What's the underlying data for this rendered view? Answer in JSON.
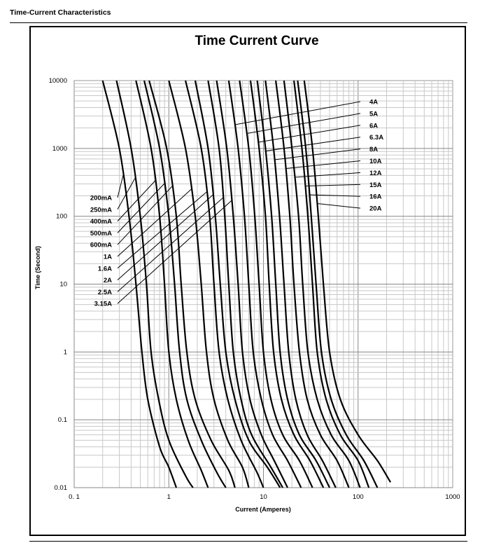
{
  "header": {
    "section_title": "Time-Current Characteristics"
  },
  "chart_data": {
    "type": "line",
    "title": "Time Current Curve",
    "xlabel": "Current (Amperes)",
    "ylabel": "Time (Second)",
    "xscale": "log",
    "yscale": "log",
    "xlim": [
      0.1,
      1000
    ],
    "ylim": [
      0.01,
      10000
    ],
    "grid": true,
    "x_tick_labels": [
      "0. 1",
      "1",
      "10",
      "100",
      "1000"
    ],
    "y_tick_labels": [
      "0.01",
      "0.1",
      "1",
      "10",
      "100",
      "1000",
      "10000"
    ],
    "series": [
      {
        "name": "200mA",
        "points": [
          [
            0.2,
            10000
          ],
          [
            0.3,
            1000
          ],
          [
            0.38,
            100
          ],
          [
            0.45,
            10
          ],
          [
            0.52,
            1
          ],
          [
            0.6,
            0.2
          ],
          [
            0.8,
            0.04
          ],
          [
            1.0,
            0.02
          ],
          [
            1.2,
            0.01
          ]
        ]
      },
      {
        "name": "250mA",
        "points": [
          [
            0.28,
            10000
          ],
          [
            0.4,
            1000
          ],
          [
            0.5,
            100
          ],
          [
            0.58,
            10
          ],
          [
            0.65,
            1
          ],
          [
            0.78,
            0.2
          ],
          [
            1.0,
            0.05
          ],
          [
            1.5,
            0.015
          ],
          [
            1.8,
            0.01
          ]
        ]
      },
      {
        "name": "400mA",
        "points": [
          [
            0.45,
            10000
          ],
          [
            0.65,
            1000
          ],
          [
            0.8,
            100
          ],
          [
            0.9,
            10
          ],
          [
            1.0,
            1
          ],
          [
            1.2,
            0.2
          ],
          [
            1.6,
            0.05
          ],
          [
            2.2,
            0.018
          ],
          [
            2.6,
            0.01
          ]
        ]
      },
      {
        "name": "500mA",
        "points": [
          [
            0.55,
            10000
          ],
          [
            0.8,
            1000
          ],
          [
            1.0,
            100
          ],
          [
            1.15,
            10
          ],
          [
            1.3,
            1
          ],
          [
            1.55,
            0.2
          ],
          [
            2.2,
            0.05
          ],
          [
            3.2,
            0.017
          ],
          [
            4.0,
            0.01
          ]
        ]
      },
      {
        "name": "600mA",
        "points": [
          [
            0.62,
            10000
          ],
          [
            0.95,
            1000
          ],
          [
            1.2,
            100
          ],
          [
            1.35,
            10
          ],
          [
            1.55,
            1
          ],
          [
            1.9,
            0.2
          ],
          [
            2.8,
            0.05
          ],
          [
            4.3,
            0.018
          ],
          [
            5.0,
            0.01
          ]
        ]
      },
      {
        "name": "1A",
        "points": [
          [
            1.0,
            10000
          ],
          [
            1.5,
            1000
          ],
          [
            1.9,
            100
          ],
          [
            2.2,
            10
          ],
          [
            2.5,
            1
          ],
          [
            3.0,
            0.2
          ],
          [
            4.2,
            0.05
          ],
          [
            6.0,
            0.02
          ],
          [
            7.0,
            0.01
          ]
        ]
      },
      {
        "name": "1.6A",
        "points": [
          [
            1.5,
            10000
          ],
          [
            2.2,
            1000
          ],
          [
            2.7,
            100
          ],
          [
            3.0,
            10
          ],
          [
            3.4,
            1
          ],
          [
            4.2,
            0.2
          ],
          [
            5.8,
            0.05
          ],
          [
            8.5,
            0.017
          ],
          [
            10.0,
            0.01
          ]
        ]
      },
      {
        "name": "2A",
        "points": [
          [
            1.9,
            10000
          ],
          [
            2.6,
            1000
          ],
          [
            3.1,
            100
          ],
          [
            3.5,
            10
          ],
          [
            4.0,
            1
          ],
          [
            5.0,
            0.2
          ],
          [
            7.0,
            0.05
          ],
          [
            11,
            0.02
          ],
          [
            15,
            0.01
          ]
        ]
      },
      {
        "name": "2.5A",
        "points": [
          [
            2.6,
            10000
          ],
          [
            3.4,
            1000
          ],
          [
            3.9,
            100
          ],
          [
            4.3,
            10
          ],
          [
            4.8,
            1
          ],
          [
            5.8,
            0.2
          ],
          [
            7.5,
            0.06
          ],
          [
            12,
            0.02
          ],
          [
            16,
            0.01
          ]
        ]
      },
      {
        "name": "3.15A",
        "points": [
          [
            3.2,
            10000
          ],
          [
            4.1,
            1000
          ],
          [
            4.8,
            100
          ],
          [
            5.4,
            10
          ],
          [
            6.0,
            1
          ],
          [
            7.2,
            0.2
          ],
          [
            9.5,
            0.06
          ],
          [
            13,
            0.025
          ],
          [
            18,
            0.01
          ]
        ]
      },
      {
        "name": "4A",
        "points": [
          [
            4.3,
            10000
          ],
          [
            5.4,
            1000
          ],
          [
            6.3,
            100
          ],
          [
            7.0,
            10
          ],
          [
            7.8,
            1
          ],
          [
            9.5,
            0.2
          ],
          [
            12.5,
            0.06
          ],
          [
            18,
            0.025
          ],
          [
            25,
            0.01
          ]
        ]
      },
      {
        "name": "5A",
        "points": [
          [
            5.6,
            10000
          ],
          [
            7.0,
            1000
          ],
          [
            8.1,
            100
          ],
          [
            9.0,
            10
          ],
          [
            10.0,
            1
          ],
          [
            12.0,
            0.2
          ],
          [
            16,
            0.06
          ],
          [
            24,
            0.025
          ],
          [
            33,
            0.01
          ]
        ]
      },
      {
        "name": "6A",
        "points": [
          [
            7.3,
            10000
          ],
          [
            9.0,
            1000
          ],
          [
            10.5,
            100
          ],
          [
            11.5,
            10
          ],
          [
            12.8,
            1
          ],
          [
            15.5,
            0.2
          ],
          [
            21,
            0.06
          ],
          [
            31,
            0.025
          ],
          [
            43,
            0.01
          ]
        ]
      },
      {
        "name": "6.3A",
        "points": [
          [
            8.6,
            10000
          ],
          [
            10.5,
            1000
          ],
          [
            12.2,
            100
          ],
          [
            13.5,
            10
          ],
          [
            15.0,
            1
          ],
          [
            18,
            0.2
          ],
          [
            24,
            0.06
          ],
          [
            36,
            0.025
          ],
          [
            50,
            0.01
          ]
        ]
      },
      {
        "name": "8A",
        "points": [
          [
            10.5,
            10000
          ],
          [
            12.8,
            1000
          ],
          [
            14.8,
            100
          ],
          [
            16.5,
            10
          ],
          [
            18.5,
            1
          ],
          [
            22,
            0.2
          ],
          [
            29,
            0.06
          ],
          [
            42,
            0.025
          ],
          [
            58,
            0.01
          ]
        ]
      },
      {
        "name": "10A",
        "points": [
          [
            13.5,
            10000
          ],
          [
            16.5,
            1000
          ],
          [
            19,
            100
          ],
          [
            21,
            10
          ],
          [
            24,
            1
          ],
          [
            29,
            0.2
          ],
          [
            40,
            0.06
          ],
          [
            60,
            0.025
          ],
          [
            80,
            0.01
          ]
        ]
      },
      {
        "name": "12A",
        "points": [
          [
            16.5,
            10000
          ],
          [
            20,
            1000
          ],
          [
            23.5,
            100
          ],
          [
            26,
            10
          ],
          [
            29.5,
            1
          ],
          [
            37,
            0.2
          ],
          [
            52,
            0.06
          ],
          [
            80,
            0.025
          ],
          [
            105,
            0.01
          ]
        ]
      },
      {
        "name": "15A",
        "points": [
          [
            21,
            10000
          ],
          [
            25.5,
            1000
          ],
          [
            29.5,
            100
          ],
          [
            33,
            10
          ],
          [
            37,
            1
          ],
          [
            46,
            0.2
          ],
          [
            65,
            0.06
          ],
          [
            100,
            0.025
          ],
          [
            130,
            0.01
          ]
        ]
      },
      {
        "name": "16A",
        "points": [
          [
            23,
            10000
          ],
          [
            28,
            1000
          ],
          [
            32,
            100
          ],
          [
            36,
            10
          ],
          [
            41,
            1
          ],
          [
            52,
            0.2
          ],
          [
            75,
            0.06
          ],
          [
            115,
            0.025
          ],
          [
            160,
            0.01
          ]
        ]
      },
      {
        "name": "20A",
        "points": [
          [
            27,
            10000
          ],
          [
            33,
            1000
          ],
          [
            38,
            100
          ],
          [
            43,
            10
          ],
          [
            50,
            1
          ],
          [
            65,
            0.2
          ],
          [
            100,
            0.06
          ],
          [
            160,
            0.025
          ],
          [
            220,
            0.012
          ]
        ]
      }
    ]
  }
}
